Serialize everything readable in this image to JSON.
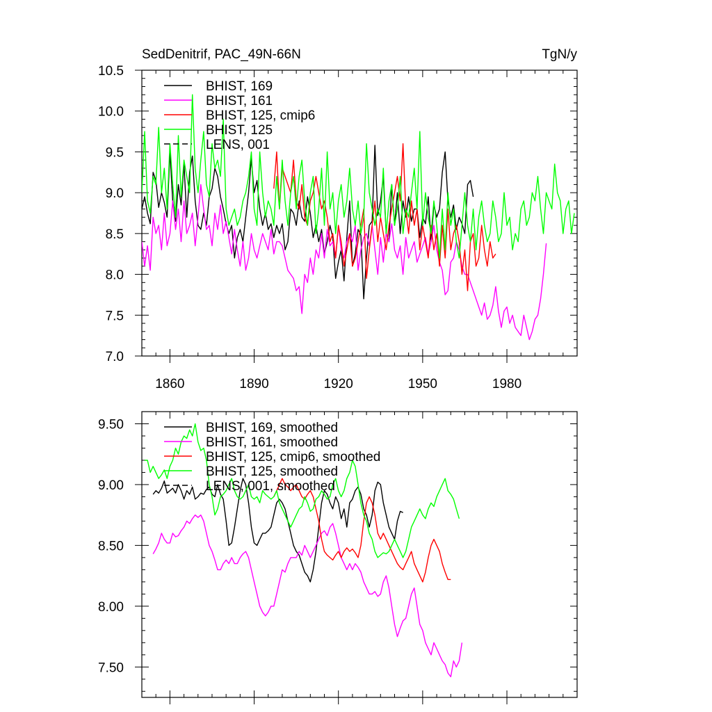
{
  "chart_data": [
    {
      "type": "line",
      "title": "SedDenitrif, PAC_49N-66N",
      "units_label": "TgN/y",
      "xlim": [
        1850,
        2005
      ],
      "ylim": [
        7.0,
        10.5
      ],
      "x_ticks": [
        1860,
        1890,
        1920,
        1950,
        1980
      ],
      "x_tick_labels": [
        "1860",
        "1890",
        "1920",
        "1950",
        "1980"
      ],
      "y_ticks": [
        7.0,
        7.5,
        8.0,
        8.5,
        9.0,
        9.5,
        10.0,
        10.5
      ],
      "y_tick_labels": [
        "7.0",
        "7.5",
        "8.0",
        "8.5",
        "9.0",
        "9.5",
        "10.0",
        "10.5"
      ],
      "grid": false,
      "legend_position": "top-left",
      "legend": [
        "BHIST, 169",
        "BHIST, 161",
        "BHIST, 125, cmip6",
        "BHIST, 125",
        "LENS, 001"
      ],
      "series": [
        {
          "name": "BHIST, 169",
          "color": "#000000",
          "dash": "",
          "x_start": 1850,
          "values": [
            8.8,
            8.95,
            8.75,
            8.62,
            9.25,
            9.15,
            8.82,
            9.0,
            8.88,
            8.7,
            9.5,
            8.9,
            8.65,
            9.1,
            8.85,
            9.35,
            8.7,
            9.25,
            9.45,
            8.9,
            8.6,
            8.55,
            8.75,
            8.6,
            8.95,
            9.05,
            9.3,
            9.2,
            8.95,
            8.8,
            8.62,
            8.5,
            8.6,
            8.2,
            8.45,
            8.55,
            8.4,
            8.7,
            9.0,
            9.42,
            9.0,
            9.15,
            8.8,
            8.6,
            8.75,
            8.55,
            8.62,
            8.45,
            8.6,
            8.5,
            8.62,
            8.3,
            8.4,
            8.8,
            8.75,
            8.6,
            8.9,
            8.7,
            8.65,
            8.95,
            8.75,
            8.45,
            8.6,
            8.4,
            8.55,
            8.25,
            8.4,
            8.6,
            8.45,
            7.95,
            8.15,
            8.3,
            7.92,
            8.45,
            8.9,
            8.1,
            8.25,
            8.55,
            8.48,
            7.7,
            8.2,
            8.6,
            8.65,
            9.58,
            8.72,
            8.9,
            9.2,
            8.5,
            8.4,
            9.1,
            8.6,
            9.0,
            8.5,
            8.9,
            8.7,
            8.95,
            8.65,
            8.8,
            8.8,
            8.45,
            8.7,
            8.62,
            8.95,
            8.4,
            8.85,
            8.7,
            8.8,
            9.25,
            9.5,
            8.9,
            8.7,
            8.85,
            8.55,
            8.7,
            8.62,
            8.5,
            9.1,
            9.15,
            8.95
          ]
        },
        {
          "name": "BHIST, 161",
          "color": "#ff00ff",
          "dash": "",
          "x_start": 1850,
          "values": [
            8.4,
            8.1,
            8.35,
            8.05,
            8.7,
            8.5,
            8.6,
            8.3,
            8.75,
            8.35,
            8.5,
            8.9,
            8.55,
            8.8,
            8.4,
            8.9,
            8.5,
            8.6,
            8.75,
            8.35,
            8.7,
            9.1,
            8.8,
            8.55,
            8.6,
            8.35,
            8.75,
            8.55,
            8.85,
            8.5,
            8.65,
            8.45,
            8.25,
            8.55,
            8.3,
            8.1,
            8.4,
            8.05,
            8.2,
            8.5,
            8.3,
            8.2,
            8.35,
            8.5,
            8.4,
            8.3,
            8.55,
            8.25,
            8.4,
            8.4,
            8.35,
            8.2,
            8.05,
            8.0,
            7.95,
            7.8,
            7.85,
            7.52,
            8.0,
            7.9,
            8.2,
            8.0,
            8.3,
            8.2,
            8.5,
            8.2,
            8.55,
            8.35,
            8.4,
            8.2,
            8.6,
            8.3,
            8.2,
            8.4,
            8.5,
            8.4,
            8.6,
            8.05,
            8.3,
            8.45,
            8.5,
            8.35,
            8.6,
            8.3,
            8.0,
            8.45,
            8.15,
            8.5,
            8.4,
            8.62,
            8.3,
            8.2,
            8.35,
            8.0,
            8.45,
            8.2,
            8.3,
            8.4,
            8.15,
            8.25,
            8.35,
            8.45,
            8.25,
            8.4,
            8.6,
            8.3,
            8.15,
            8.05,
            7.75,
            7.8,
            8.15,
            8.2,
            8.4,
            8.3,
            8.1,
            8.0,
            8.0,
            7.9,
            7.8,
            7.7,
            7.6,
            7.5,
            7.65,
            7.45,
            7.5,
            7.62,
            7.85,
            7.55,
            7.35,
            7.55,
            7.6,
            7.4,
            7.5,
            7.35,
            7.3,
            7.25,
            7.5,
            7.35,
            7.2,
            7.3,
            7.45,
            7.5,
            7.7,
            8.0,
            8.38
          ]
        },
        {
          "name": "BHIST, 125, cmip6",
          "color": "#ff0000",
          "dash": "",
          "x_start": 1897,
          "values": [
            9.05,
            9.5,
            8.8,
            9.3,
            9.2,
            9.1,
            9.0,
            9.4,
            8.9,
            8.8,
            9.1,
            8.7,
            8.6,
            8.9,
            9.0,
            9.2,
            9.0,
            8.8,
            8.9,
            8.7,
            8.4,
            8.5,
            8.2,
            8.6,
            8.4,
            8.1,
            8.3,
            8.5,
            8.1,
            8.2,
            8.4,
            8.6,
            8.8,
            7.95,
            8.3,
            8.6,
            8.9,
            8.4,
            8.7,
            8.5,
            8.3,
            8.6,
            8.8,
            9.0,
            9.2,
            8.9,
            9.6,
            8.8,
            8.5,
            8.9,
            8.6,
            8.8,
            8.3,
            8.6,
            8.4,
            8.2,
            8.6,
            8.3,
            8.5,
            8.1,
            8.6,
            8.2,
            8.8,
            8.3,
            8.5,
            8.6,
            8.4,
            8.0,
            8.3,
            7.8,
            8.4,
            8.5,
            8.1,
            8.2,
            8.6,
            8.3,
            8.1,
            8.4,
            8.2,
            8.25
          ]
        },
        {
          "name": "BHIST, 125",
          "color": "#00ff00",
          "dash": "",
          "x_start": 1850,
          "values": [
            9.0,
            9.75,
            8.9,
            8.75,
            9.2,
            9.1,
            9.8,
            9.0,
            9.3,
            8.8,
            9.6,
            9.1,
            8.7,
            9.7,
            8.95,
            9.4,
            9.2,
            9.0,
            10.2,
            9.3,
            9.0,
            9.4,
            9.75,
            9.1,
            8.95,
            9.6,
            9.3,
            9.4,
            9.2,
            9.9,
            8.8,
            8.6,
            8.7,
            8.8,
            8.6,
            8.7,
            8.9,
            9.0,
            9.2,
            9.5,
            8.8,
            8.6,
            9.5,
            9.0,
            8.7,
            8.9,
            8.8,
            8.6,
            9.2,
            8.8,
            9.4,
            8.9,
            8.6,
            9.0,
            9.2,
            8.8,
            9.2,
            9.4,
            8.9,
            8.6,
            9.0,
            9.2,
            8.5,
            8.8,
            9.3,
            8.6,
            9.5,
            8.8,
            9.0,
            8.5,
            8.9,
            9.1,
            8.7,
            8.9,
            9.3,
            8.8,
            8.6,
            8.9,
            8.5,
            8.7,
            9.6,
            9.0,
            8.8,
            8.6,
            8.8,
            8.7,
            9.3,
            8.5,
            8.9,
            9.1,
            8.6,
            8.8,
            9.2,
            8.5,
            8.8,
            8.7,
            9.0,
            9.3,
            8.8,
            9.75,
            8.6,
            9.0,
            8.7,
            8.5,
            8.9,
            8.6,
            8.2,
            8.8,
            8.3,
            9.0,
            8.6,
            8.8,
            8.4,
            8.2,
            8.6,
            9.0,
            8.6,
            8.4,
            8.8,
            8.3,
            8.7,
            8.9,
            8.6,
            8.4,
            8.5,
            8.9,
            8.7,
            8.4,
            8.5,
            9.0,
            8.6,
            8.7,
            8.3,
            8.5,
            8.4,
            8.8,
            8.9,
            8.6,
            8.7,
            9.0,
            8.9,
            9.2,
            8.8,
            8.5,
            9.0,
            8.9,
            8.8,
            9.35,
            9.0,
            8.9,
            8.5,
            8.8,
            8.9,
            8.5,
            8.75
          ]
        },
        {
          "name": "LENS, 001",
          "color": "#000000",
          "dash": "8,5",
          "x_start": 1850,
          "values": []
        }
      ]
    },
    {
      "type": "line",
      "title": "",
      "xlim": [
        1850,
        2005
      ],
      "ylim": [
        7.25,
        9.6
      ],
      "x_ticks": [
        1860,
        1890,
        1920,
        1950,
        1980
      ],
      "y_ticks": [
        7.5,
        8.0,
        8.5,
        9.0,
        9.5
      ],
      "y_tick_labels": [
        "7.50",
        "8.00",
        "8.50",
        "9.00",
        "9.50"
      ],
      "grid": false,
      "legend_position": "top-left",
      "legend": [
        "BHIST, 169, smoothed",
        "BHIST, 161, smoothed",
        "BHIST, 125, cmip6, smoothed",
        "BHIST, 125, smoothed",
        "LENS, 001, smoothed"
      ],
      "series": [
        {
          "name": "BHIST, 169, smoothed",
          "color": "#000000",
          "dash": "",
          "x_start": 1854,
          "values": [
            8.92,
            8.95,
            8.93,
            8.97,
            9.03,
            8.93,
            8.95,
            8.97,
            8.93,
            9.0,
            8.95,
            8.88,
            8.95,
            8.92,
            8.98,
            8.88,
            8.9,
            8.93,
            8.92,
            8.96,
            8.98,
            8.92,
            8.9,
            9.0,
            8.92,
            8.88,
            8.7,
            8.5,
            8.52,
            8.65,
            8.8,
            8.95,
            9.05,
            9.0,
            8.85,
            8.65,
            8.52,
            8.5,
            8.55,
            8.6,
            8.6,
            8.62,
            8.65,
            8.75,
            8.85,
            8.88,
            8.85,
            8.8,
            8.7,
            8.6,
            8.5,
            8.45,
            8.42,
            8.35,
            8.28,
            8.25,
            8.2,
            8.3,
            8.45,
            8.65,
            8.85,
            8.95,
            8.92,
            8.85,
            8.8,
            8.9,
            8.85,
            8.72,
            8.8,
            8.65,
            8.85,
            8.88,
            8.95,
            8.98,
            8.92,
            8.8,
            8.75,
            8.65,
            8.75,
            8.95,
            9.02,
            9.0,
            8.85,
            8.75,
            8.65,
            8.6,
            8.55,
            8.7,
            8.78,
            8.77
          ]
        },
        {
          "name": "BHIST, 161, smoothed",
          "color": "#ff00ff",
          "dash": "",
          "x_start": 1854,
          "values": [
            8.43,
            8.47,
            8.52,
            8.6,
            8.55,
            8.52,
            8.52,
            8.6,
            8.57,
            8.58,
            8.62,
            8.65,
            8.7,
            8.68,
            8.72,
            8.75,
            8.73,
            8.75,
            8.7,
            8.6,
            8.5,
            8.45,
            8.38,
            8.3,
            8.3,
            8.35,
            8.38,
            8.35,
            8.4,
            8.35,
            8.35,
            8.4,
            8.43,
            8.45,
            8.4,
            8.3,
            8.2,
            8.1,
            8.0,
            7.95,
            7.92,
            7.95,
            8.0,
            8.0,
            8.1,
            8.2,
            8.3,
            8.28,
            8.35,
            8.4,
            8.4,
            8.4,
            8.45,
            8.42,
            8.5,
            8.45,
            8.4,
            8.45,
            8.5,
            8.55,
            8.6,
            8.62,
            8.58,
            8.65,
            8.68,
            8.6,
            8.5,
            8.4,
            8.35,
            8.3,
            8.35,
            8.3,
            8.35,
            8.32,
            8.28,
            8.2,
            8.15,
            8.1,
            8.1,
            8.12,
            8.08,
            8.1,
            8.2,
            8.25,
            8.15,
            8.0,
            7.85,
            7.75,
            7.82,
            7.88,
            7.9,
            8.0,
            8.1,
            8.15,
            8.0,
            7.85,
            7.8,
            7.7,
            7.65,
            7.6,
            7.7,
            7.65,
            7.6,
            7.55,
            7.52,
            7.45,
            7.42,
            7.55,
            7.5,
            7.55,
            7.7
          ]
        },
        {
          "name": "BHIST, 125, cmip6, smoothed",
          "color": "#ff0000",
          "dash": "",
          "x_start": 1897,
          "values": [
            8.9,
            8.95,
            9.0,
            9.05,
            9.0,
            8.98,
            8.95,
            8.98,
            9.0,
            8.95,
            8.9,
            8.88,
            8.92,
            8.95,
            8.9,
            8.8,
            8.7,
            8.55,
            8.45,
            8.42,
            8.4,
            8.38,
            8.42,
            8.45,
            8.4,
            8.45,
            8.48,
            8.45,
            8.47,
            8.44,
            8.4,
            8.5,
            8.7,
            8.85,
            8.9,
            8.85,
            8.75,
            8.6,
            8.55,
            8.6,
            8.55,
            8.5,
            8.45,
            8.4,
            8.35,
            8.32,
            8.3,
            8.35,
            8.4,
            8.45,
            8.35,
            8.3,
            8.25,
            8.2,
            8.28,
            8.4,
            8.5,
            8.55,
            8.5,
            8.45,
            8.35,
            8.28,
            8.22,
            8.22
          ]
        },
        {
          "name": "BHIST, 125, smoothed",
          "color": "#00ff00",
          "dash": "",
          "x_start": 1851,
          "values": [
            9.2,
            9.2,
            9.1,
            9.15,
            9.1,
            9.05,
            9.08,
            9.12,
            9.05,
            9.15,
            9.2,
            9.3,
            9.25,
            9.35,
            9.4,
            9.38,
            9.45,
            9.4,
            9.5,
            9.35,
            9.28,
            9.3,
            9.2,
            9.0,
            8.9,
            8.75,
            8.8,
            8.9,
            8.92,
            8.95,
            9.0,
            9.05,
            8.95,
            8.9,
            8.88,
            8.9,
            8.95,
            9.0,
            8.9,
            8.88,
            8.9,
            8.85,
            8.95,
            8.92,
            8.9,
            8.88,
            8.9,
            8.95,
            8.85,
            8.8,
            8.75,
            8.7,
            8.65,
            8.7,
            8.75,
            8.8,
            8.82,
            8.9,
            8.85,
            8.78,
            8.8,
            8.88,
            8.9,
            8.95,
            8.92,
            8.88,
            8.9,
            9.0,
            9.05,
            8.95,
            8.9,
            8.95,
            9.05,
            9.1,
            9.2,
            9.15,
            9.0,
            8.85,
            8.75,
            8.7,
            8.6,
            8.55,
            8.45,
            8.4,
            8.42,
            8.44,
            8.43,
            8.45,
            8.5,
            8.55,
            8.5,
            8.45,
            8.4,
            8.45,
            8.55,
            8.65,
            8.7,
            8.75,
            8.8,
            8.75,
            8.72,
            8.8,
            8.85,
            8.82,
            8.9,
            8.95,
            9.0,
            9.05,
            8.95,
            8.92,
            8.88,
            8.8,
            8.72
          ]
        },
        {
          "name": "LENS, 001, smoothed",
          "color": "#000000",
          "dash": "8,5",
          "x_start": 1854,
          "values": []
        }
      ]
    }
  ]
}
